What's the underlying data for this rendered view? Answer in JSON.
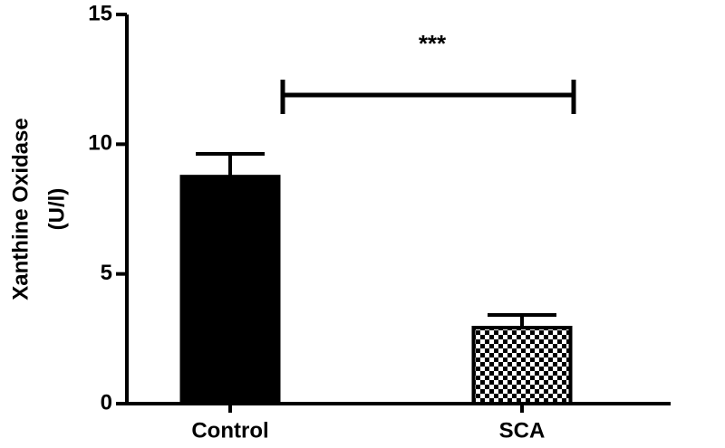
{
  "chart_data": {
    "type": "bar",
    "ylabel": [
      "Xanthine Oxidase",
      "(U/l)"
    ],
    "categories": [
      "Control",
      "SCA"
    ],
    "values": [
      8.75,
      2.93
    ],
    "errors": [
      0.88,
      0.49
    ],
    "color": "#000000",
    "patterns": [
      "solid",
      "checkerboard"
    ],
    "ylim": [
      0,
      15
    ],
    "yticks": [
      0,
      5,
      10,
      15
    ],
    "annotation": "***"
  }
}
